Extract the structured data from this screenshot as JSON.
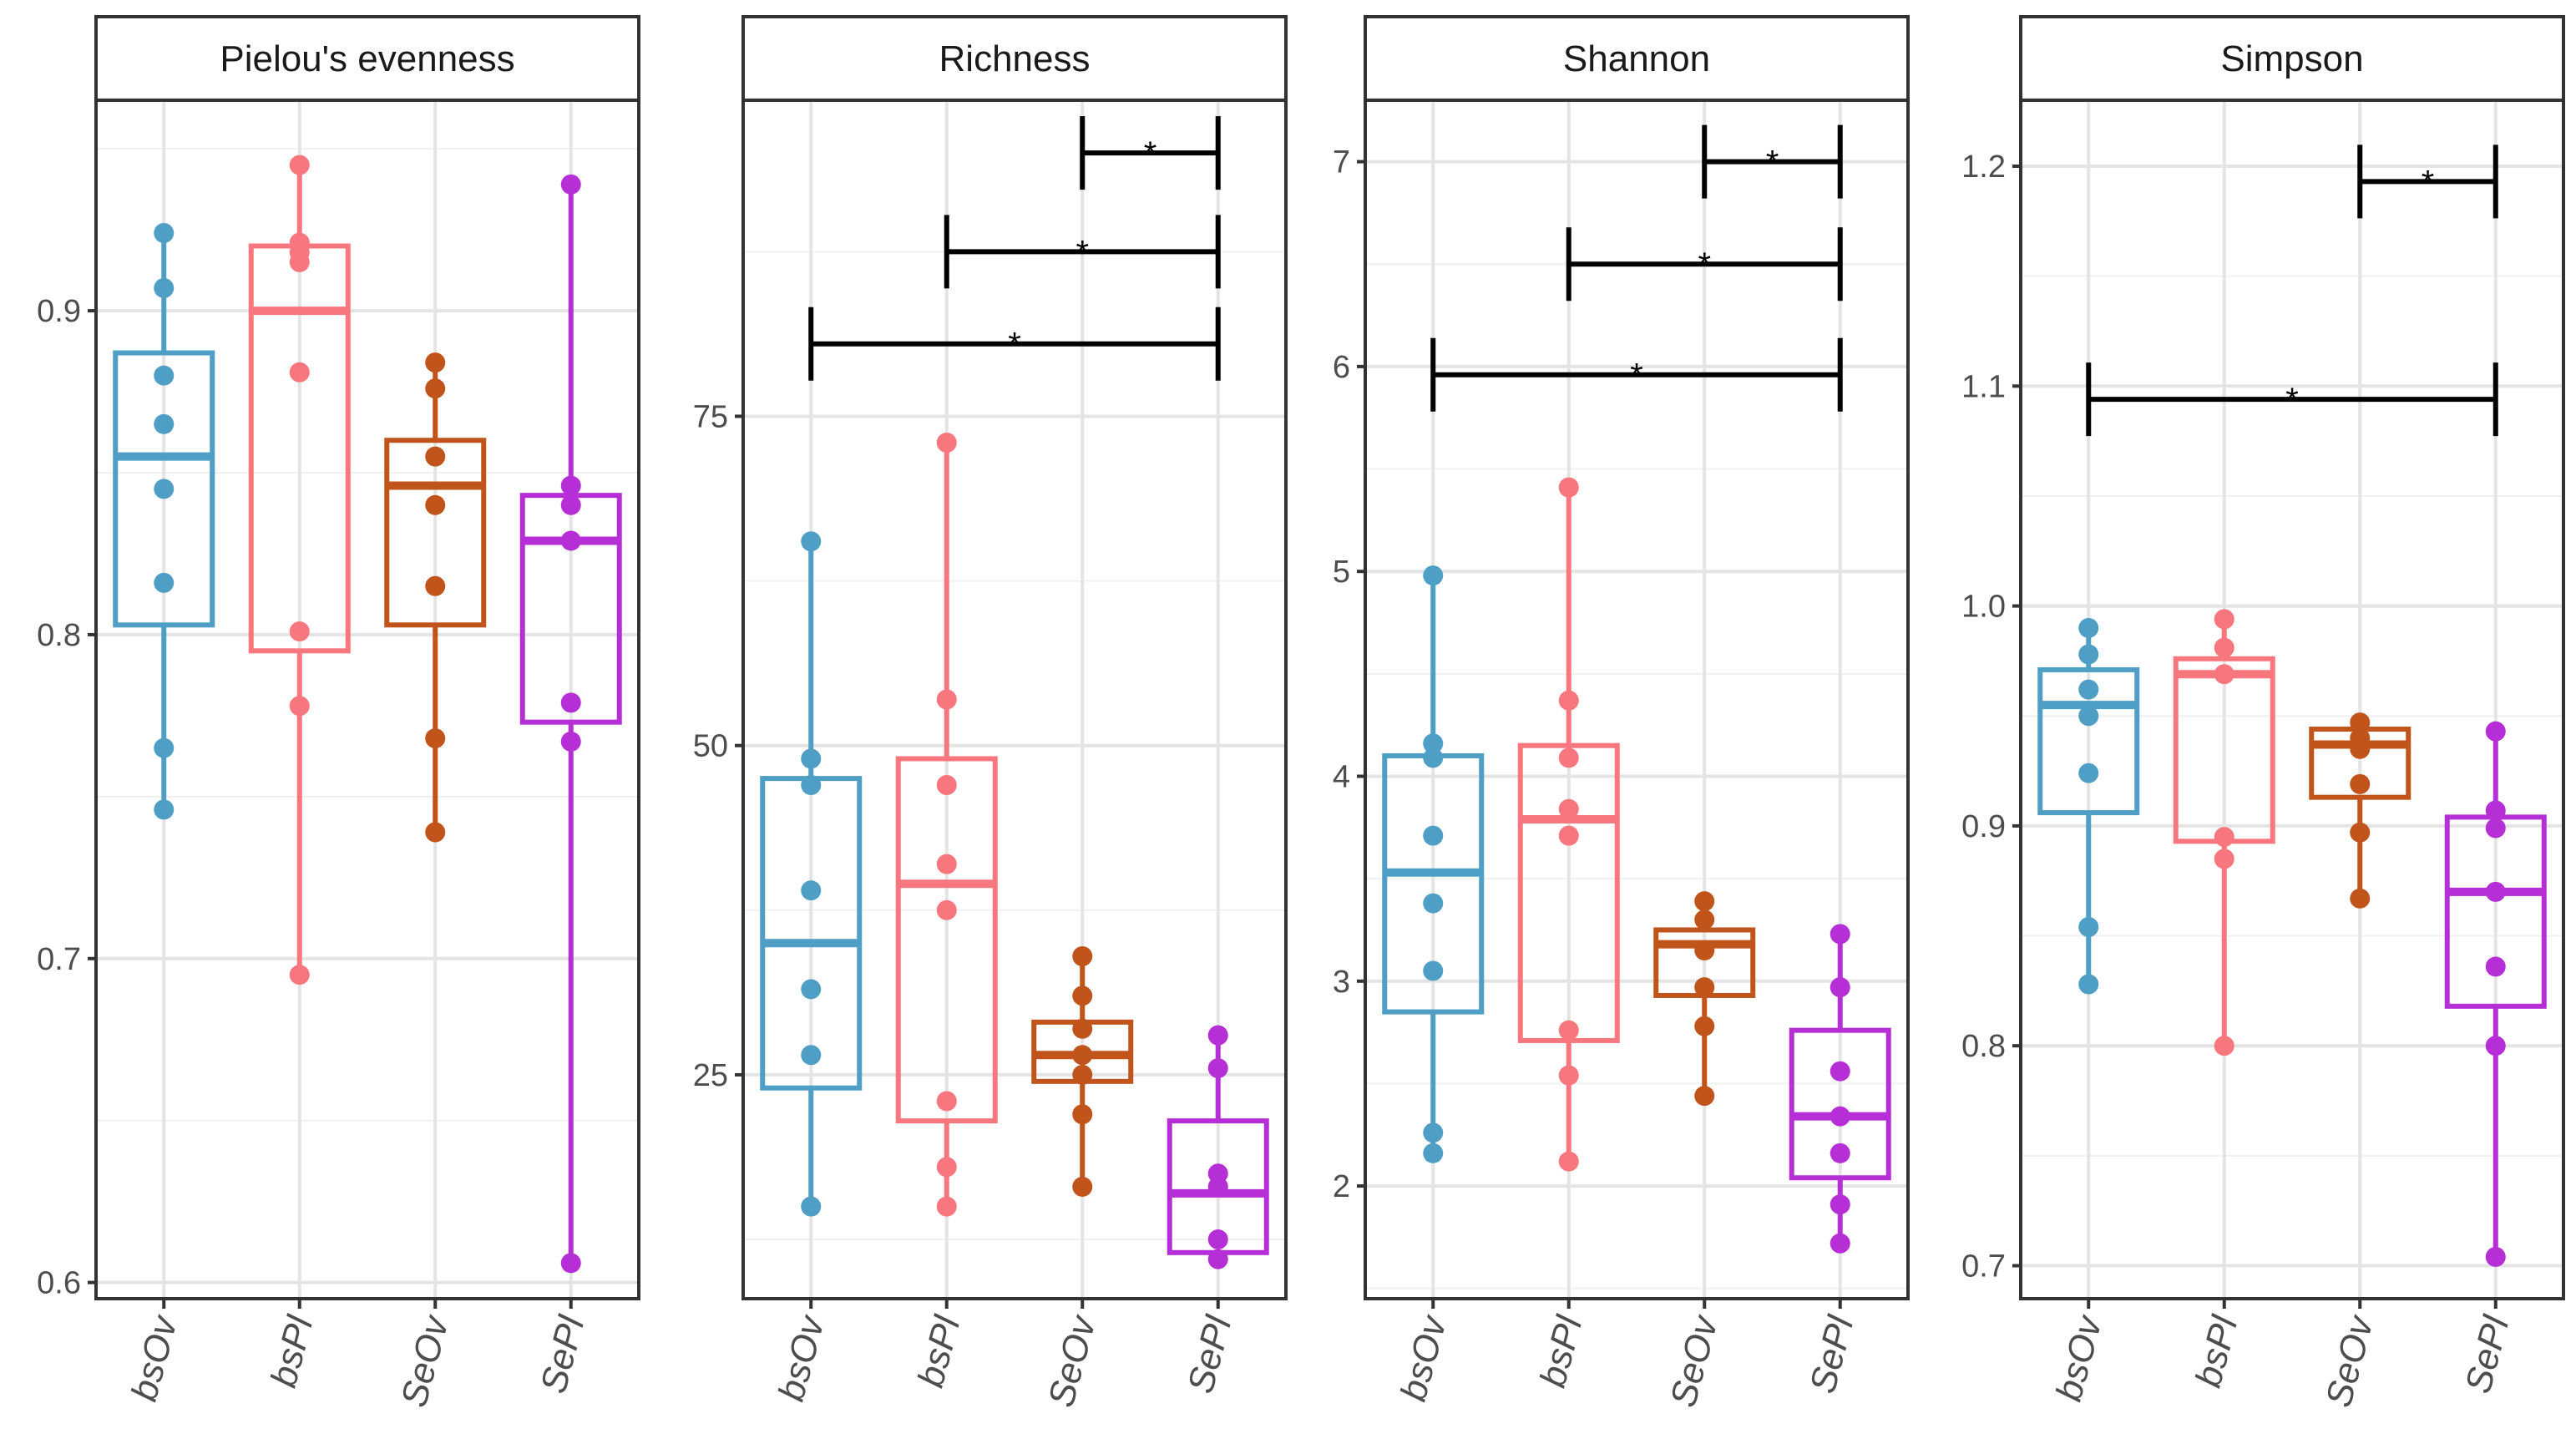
{
  "colors": {
    "bsOv": "#4E9EC6",
    "bsPl": "#F8767D",
    "SeOv": "#C0541A",
    "SePl": "#B62ED5",
    "grid_major": "#e4e4e4",
    "grid_minor": "#f0f0f0",
    "axis": "#333333",
    "strip_bg": "#ffffff"
  },
  "chart_data": [
    {
      "type": "box",
      "title": "Pielou's evenness",
      "categories": [
        "bsOv",
        "bsPl",
        "SeOv",
        "SePl"
      ],
      "ylim": [
        0.595,
        0.965
      ],
      "yticks": [
        0.6,
        0.7,
        0.8,
        0.9
      ],
      "ytick_labels": [
        "0.6",
        "0.7",
        "0.8",
        "0.9"
      ],
      "boxes": [
        {
          "group": "bsOv",
          "min": 0.746,
          "q1": 0.803,
          "median": 0.855,
          "q3": 0.887,
          "max": 0.924
        },
        {
          "group": "bsPl",
          "min": 0.695,
          "q1": 0.795,
          "median": 0.9,
          "q3": 0.92,
          "max": 0.945
        },
        {
          "group": "SeOv",
          "min": 0.739,
          "q1": 0.803,
          "median": 0.846,
          "q3": 0.86,
          "max": 0.884
        },
        {
          "group": "SePl",
          "min": 0.606,
          "q1": 0.773,
          "median": 0.829,
          "q3": 0.843,
          "max": 0.939
        }
      ],
      "points": [
        {
          "group": "bsOv",
          "values": [
            0.924,
            0.907,
            0.88,
            0.865,
            0.845,
            0.816,
            0.765,
            0.746
          ]
        },
        {
          "group": "bsPl",
          "values": [
            0.945,
            0.921,
            0.918,
            0.915,
            0.881,
            0.801,
            0.778,
            0.695
          ]
        },
        {
          "group": "SeOv",
          "values": [
            0.884,
            0.876,
            0.855,
            0.84,
            0.815,
            0.768,
            0.739
          ]
        },
        {
          "group": "SePl",
          "values": [
            0.939,
            0.846,
            0.84,
            0.829,
            0.779,
            0.767,
            0.606
          ]
        }
      ],
      "significance": []
    },
    {
      "type": "box",
      "title": "Richness",
      "categories": [
        "bsOv",
        "bsPl",
        "SeOv",
        "SePl"
      ],
      "ylim": [
        8,
        99
      ],
      "yticks": [
        25,
        50,
        75
      ],
      "ytick_labels": [
        "25",
        "50",
        "75"
      ],
      "boxes": [
        {
          "group": "bsOv",
          "min": 15,
          "q1": 24,
          "median": 35,
          "q3": 47.5,
          "max": 65.5
        },
        {
          "group": "bsPl",
          "min": 15,
          "q1": 21.5,
          "median": 39.5,
          "q3": 49,
          "max": 73
        },
        {
          "group": "SeOv",
          "min": 16.5,
          "q1": 24.5,
          "median": 26.5,
          "q3": 29,
          "max": 34
        },
        {
          "group": "SePl",
          "min": 11,
          "q1": 11.5,
          "median": 16,
          "q3": 21.5,
          "max": 28
        }
      ],
      "points": [
        {
          "group": "bsOv",
          "values": [
            65.5,
            49,
            47,
            39,
            31.5,
            26.5,
            15
          ]
        },
        {
          "group": "bsPl",
          "values": [
            73,
            53.5,
            47,
            41,
            37.5,
            23,
            18,
            15
          ]
        },
        {
          "group": "SeOv",
          "values": [
            34,
            31,
            28.5,
            26.5,
            25,
            22,
            16.5
          ]
        },
        {
          "group": "SePl",
          "values": [
            28,
            25.5,
            17.5,
            16.5,
            12.5,
            11
          ]
        }
      ],
      "significance": [
        {
          "from": "SeOv",
          "to": "SePl",
          "y": 95,
          "label": "*"
        },
        {
          "from": "bsPl",
          "to": "SePl",
          "y": 87.5,
          "label": "*"
        },
        {
          "from": "bsOv",
          "to": "SePl",
          "y": 80.5,
          "label": "*"
        }
      ]
    },
    {
      "type": "box",
      "title": "Shannon",
      "categories": [
        "bsOv",
        "bsPl",
        "SeOv",
        "SePl"
      ],
      "ylim": [
        1.45,
        7.3
      ],
      "yticks": [
        2,
        3,
        4,
        5,
        6,
        7
      ],
      "ytick_labels": [
        "2",
        "3",
        "4",
        "5",
        "6",
        "7"
      ],
      "boxes": [
        {
          "group": "bsOv",
          "min": 2.16,
          "q1": 2.85,
          "median": 3.53,
          "q3": 4.1,
          "max": 4.98
        },
        {
          "group": "bsPl",
          "min": 2.12,
          "q1": 2.71,
          "median": 3.79,
          "q3": 4.15,
          "max": 5.41
        },
        {
          "group": "SeOv",
          "min": 2.44,
          "q1": 2.93,
          "median": 3.18,
          "q3": 3.25,
          "max": 3.39
        },
        {
          "group": "SePl",
          "min": 1.72,
          "q1": 2.04,
          "median": 2.34,
          "q3": 2.76,
          "max": 3.23
        }
      ],
      "points": [
        {
          "group": "bsOv",
          "values": [
            4.98,
            4.16,
            4.09,
            3.71,
            3.38,
            3.05,
            2.26,
            2.16
          ]
        },
        {
          "group": "bsPl",
          "values": [
            5.41,
            4.37,
            4.09,
            3.84,
            3.71,
            2.76,
            2.54,
            2.12
          ]
        },
        {
          "group": "SeOv",
          "values": [
            3.39,
            3.3,
            3.15,
            2.97,
            2.78,
            2.44
          ]
        },
        {
          "group": "SePl",
          "values": [
            3.23,
            2.97,
            2.56,
            2.34,
            2.16,
            1.91,
            1.72
          ]
        }
      ],
      "significance": [
        {
          "from": "SeOv",
          "to": "SePl",
          "y": 7.0,
          "label": "*"
        },
        {
          "from": "bsPl",
          "to": "SePl",
          "y": 6.5,
          "label": "*"
        },
        {
          "from": "bsOv",
          "to": "SePl",
          "y": 5.96,
          "label": "*"
        }
      ]
    },
    {
      "type": "box",
      "title": "Simpson",
      "categories": [
        "bsOv",
        "bsPl",
        "SeOv",
        "SePl"
      ],
      "ylim": [
        0.685,
        1.23
      ],
      "yticks": [
        0.7,
        0.8,
        0.9,
        1.0,
        1.1,
        1.2
      ],
      "ytick_labels": [
        "0.7",
        "0.8",
        "0.9",
        "1.0",
        "1.1",
        "1.2"
      ],
      "boxes": [
        {
          "group": "bsOv",
          "min": 0.828,
          "q1": 0.906,
          "median": 0.955,
          "q3": 0.971,
          "max": 0.99
        },
        {
          "group": "bsPl",
          "min": 0.8,
          "q1": 0.893,
          "median": 0.969,
          "q3": 0.976,
          "max": 0.994
        },
        {
          "group": "SeOv",
          "min": 0.867,
          "q1": 0.913,
          "median": 0.937,
          "q3": 0.944,
          "max": 0.947
        },
        {
          "group": "SePl",
          "min": 0.704,
          "q1": 0.818,
          "median": 0.87,
          "q3": 0.904,
          "max": 0.943
        }
      ],
      "points": [
        {
          "group": "bsOv",
          "values": [
            0.99,
            0.978,
            0.962,
            0.95,
            0.924,
            0.854,
            0.828
          ]
        },
        {
          "group": "bsPl",
          "values": [
            0.994,
            0.981,
            0.969,
            0.895,
            0.885,
            0.8
          ]
        },
        {
          "group": "SeOv",
          "values": [
            0.947,
            0.94,
            0.935,
            0.919,
            0.897,
            0.867
          ]
        },
        {
          "group": "SePl",
          "values": [
            0.943,
            0.907,
            0.899,
            0.87,
            0.836,
            0.8,
            0.704
          ]
        }
      ],
      "significance": [
        {
          "from": "SeOv",
          "to": "SePl",
          "y": 1.193,
          "label": "*"
        },
        {
          "from": "bsOv",
          "to": "SePl",
          "y": 1.094,
          "label": "*"
        }
      ]
    }
  ]
}
